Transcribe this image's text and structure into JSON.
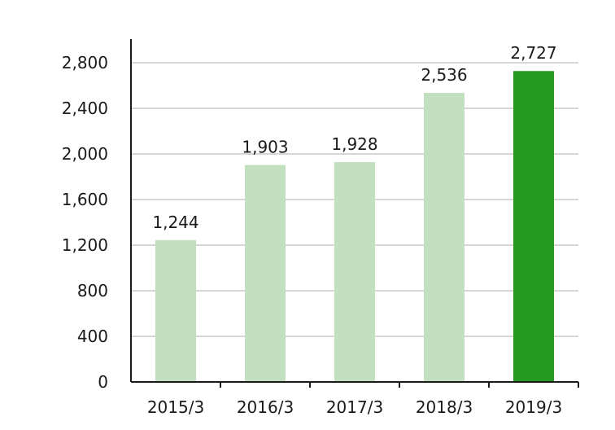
{
  "chart_data": {
    "type": "bar",
    "categories": [
      "2015/3",
      "2016/3",
      "2017/3",
      "2018/3",
      "2019/3"
    ],
    "values": [
      1244,
      1903,
      1928,
      2536,
      2727
    ],
    "value_labels": [
      "1,244",
      "1,903",
      "1,928",
      "2,536",
      "2,727"
    ],
    "ylim": [
      0,
      2800
    ],
    "yticks": [
      0,
      400,
      800,
      1200,
      1600,
      2000,
      2400,
      2800
    ],
    "ytick_labels": [
      "0",
      "400",
      "800",
      "1,200",
      "1,600",
      "2,000",
      "2,400",
      "2,800"
    ],
    "grid": true,
    "legend": "none"
  },
  "colors": {
    "bar": "#c2e0bf",
    "bar_highlight": "#269b22",
    "grid": "#c8c8c8",
    "axis": "#1a1a1a"
  },
  "highlight_index": 4
}
